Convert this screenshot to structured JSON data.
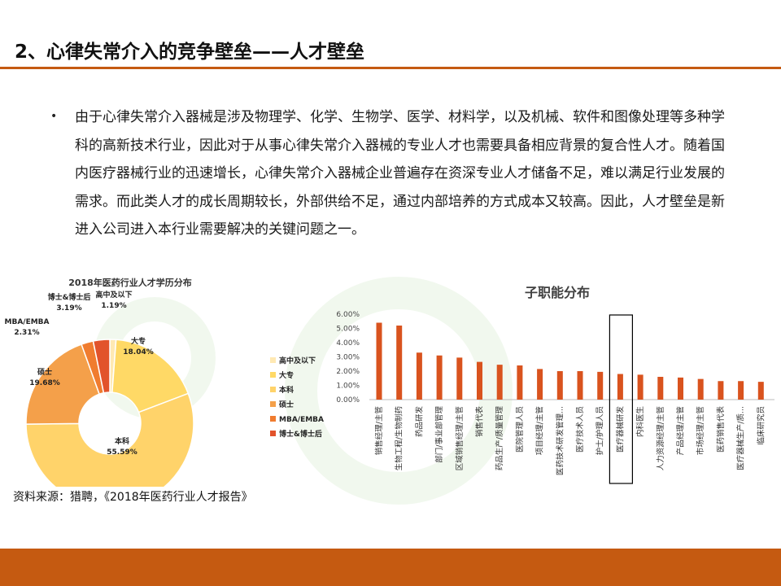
{
  "slide": {
    "title": "2、心律失常介入的竞争壁垒——人才壁垒",
    "bullet": "•",
    "paragraph": "由于心律失常介入器械是涉及物理学、化学、生物学、医学、材料学，以及机械、软件和图像处理等多种学科的高新技术行业，因此对于从事心律失常介入器械的专业人才也需要具备相应背景的复合性人才。随着国内医疗器械行业的迅速增长，心律失常介入器械企业普遍存在资深专业人才储备不足，难以满足行业发展的需求。而此类人才的成长周期较长，外部供给不足，通过内部培养的方式成本又较高。因此，人才壁垒是新进入公司进入本行业需要解决的关键问题之一。",
    "source": "资料来源：猎聘，《2018年医药行业人才报告》"
  },
  "chart_data": [
    {
      "type": "pie",
      "title": "2018年医药行业人才学历分布",
      "categories": [
        "高中及以下",
        "大专",
        "本科",
        "硕士",
        "MBA/EMBA",
        "博士&博士后"
      ],
      "values": [
        1.19,
        18.04,
        55.59,
        19.68,
        2.31,
        3.19
      ],
      "value_labels": [
        "1.19%",
        "18.04%",
        "55.59%",
        "19.68%",
        "2.31%",
        "3.19%"
      ],
      "colors": [
        "#FFE9B3",
        "#FFD966",
        "#FFD36A",
        "#F4A04A",
        "#F07C2F",
        "#E2532B"
      ],
      "legend_position": "right"
    },
    {
      "type": "bar",
      "title": "子职能分布",
      "categories": [
        "销售经理/主管",
        "生物工程/生物制药",
        "药品研发",
        "部门/事业部管理",
        "区域销售经理/主管",
        "销售代表",
        "药品生产/质量管理",
        "医院管理人员",
        "项目经理/主管",
        "医药技术研发管理...",
        "医疗技术人员",
        "护士/护理人员",
        "医疗器械研发",
        "内科医生",
        "人力资源经理/主管",
        "产品经理/主管",
        "市场经理/主管",
        "医药销售代表",
        "医疗器械生产/质...",
        "临床研究员"
      ],
      "values": [
        5.4,
        5.2,
        3.3,
        3.1,
        2.95,
        2.65,
        2.45,
        2.4,
        2.15,
        2.0,
        2.0,
        1.95,
        1.8,
        1.75,
        1.6,
        1.55,
        1.45,
        1.3,
        1.3,
        1.25
      ],
      "yticks": [
        "0.00%",
        "1.00%",
        "2.00%",
        "3.00%",
        "4.00%",
        "5.00%",
        "6.00%"
      ],
      "ylim": [
        0,
        6
      ],
      "highlighted": "医疗器械研发",
      "bar_color": "#D9531E",
      "grid": false
    }
  ]
}
